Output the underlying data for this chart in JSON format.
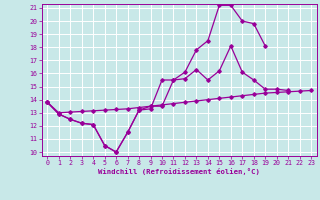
{
  "xlabel": "Windchill (Refroidissement éolien,°C)",
  "bg_color": "#c8e8e8",
  "grid_color": "#ffffff",
  "line_color": "#990099",
  "ylim": [
    10,
    21
  ],
  "xlim": [
    -0.5,
    23.5
  ],
  "yticks": [
    10,
    11,
    12,
    13,
    14,
    15,
    16,
    17,
    18,
    19,
    20,
    21
  ],
  "xticks": [
    0,
    1,
    2,
    3,
    4,
    5,
    6,
    7,
    8,
    9,
    10,
    11,
    12,
    13,
    14,
    15,
    16,
    17,
    18,
    19,
    20,
    21,
    22,
    23
  ],
  "line1_x": [
    0,
    1,
    2,
    3,
    4,
    5,
    6,
    7,
    8,
    9,
    10,
    11,
    12,
    13,
    14,
    15,
    16,
    17,
    18,
    19,
    20,
    21
  ],
  "line1_y": [
    13.8,
    12.9,
    12.5,
    12.2,
    12.1,
    10.5,
    10.0,
    11.5,
    13.2,
    13.3,
    15.5,
    15.5,
    15.6,
    16.3,
    15.5,
    16.2,
    18.1,
    16.1,
    15.5,
    14.8,
    14.8,
    14.7
  ],
  "line2_x": [
    0,
    1,
    2,
    3,
    4,
    5,
    6,
    7,
    8,
    9,
    10,
    11,
    12,
    13,
    14,
    15,
    16,
    17,
    18,
    19
  ],
  "line2_y": [
    13.8,
    12.9,
    12.5,
    12.2,
    12.1,
    10.5,
    10.0,
    11.5,
    13.2,
    13.5,
    13.5,
    15.5,
    16.1,
    17.8,
    18.5,
    21.2,
    21.2,
    20.0,
    19.8,
    18.1
  ],
  "line3_x": [
    0,
    1,
    2,
    3,
    4,
    5,
    6,
    7,
    8,
    9,
    10,
    11,
    12,
    13,
    14,
    15,
    16,
    17,
    18,
    19,
    20,
    21,
    22,
    23
  ],
  "line3_y": [
    13.8,
    13.0,
    13.05,
    13.1,
    13.15,
    13.2,
    13.25,
    13.3,
    13.4,
    13.5,
    13.6,
    13.7,
    13.8,
    13.9,
    14.0,
    14.1,
    14.2,
    14.3,
    14.4,
    14.5,
    14.55,
    14.6,
    14.65,
    14.7
  ]
}
